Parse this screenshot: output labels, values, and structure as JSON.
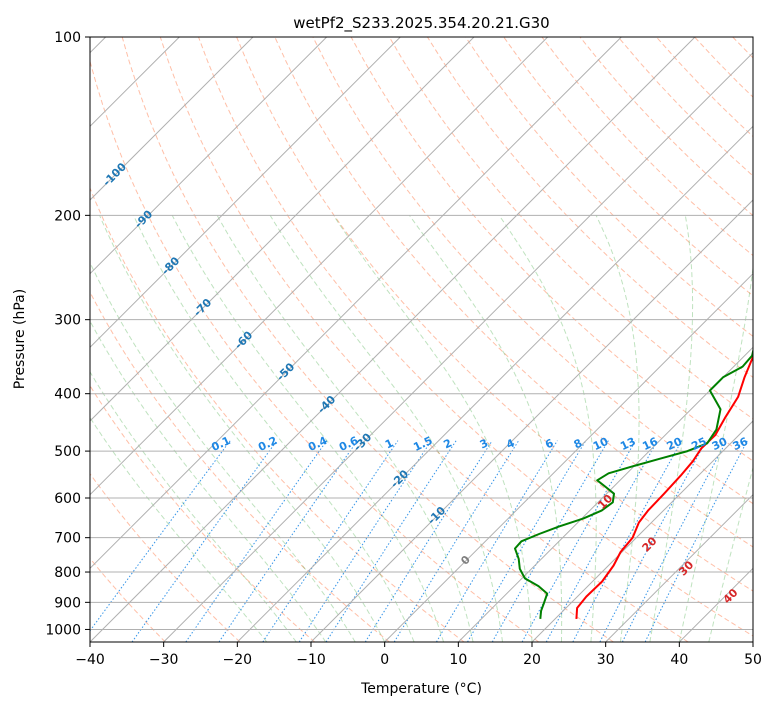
{
  "chart_data": {
    "type": "line",
    "title": "wetPf2_S233.2025.354.20.21.G30",
    "xlabel": "Temperature (°C)",
    "ylabel": "Pressure (hPa)",
    "xlim": [
      -40,
      50
    ],
    "ylim": [
      1050,
      100
    ],
    "x_ticks": [
      -40,
      -30,
      -20,
      -10,
      0,
      10,
      20,
      30,
      40,
      50
    ],
    "y_ticks": [
      100,
      200,
      300,
      400,
      500,
      600,
      700,
      800,
      900,
      1000
    ],
    "grid": true,
    "series": [
      {
        "name": "Temperature",
        "color": "#ff0000",
        "points": [
          [
            22.9,
            960
          ],
          [
            21.5,
            920
          ],
          [
            21.2,
            880
          ],
          [
            21.3,
            830
          ],
          [
            20.7,
            780
          ],
          [
            19.8,
            740
          ],
          [
            19.5,
            700
          ],
          [
            18.3,
            660
          ],
          [
            17.9,
            630
          ],
          [
            17.8,
            590
          ],
          [
            17.6,
            550
          ],
          [
            17.3,
            520
          ],
          [
            16.7,
            495
          ],
          [
            16.8,
            470
          ],
          [
            15.8,
            440
          ],
          [
            14.7,
            405
          ],
          [
            12.9,
            375
          ],
          [
            11.2,
            345
          ],
          [
            9.6,
            315
          ],
          [
            7.7,
            285
          ],
          [
            5.7,
            260
          ],
          [
            4.0,
            240
          ],
          [
            2.0,
            220
          ],
          [
            0.1,
            200
          ],
          [
            -2.3,
            182
          ],
          [
            -3.5,
            172
          ],
          [
            -3.5,
            168
          ],
          [
            -2.3,
            162
          ],
          [
            1.0,
            157
          ],
          [
            4.5,
            152
          ],
          [
            7.5,
            146
          ],
          [
            8.5,
            140
          ],
          [
            8.8,
            133
          ],
          [
            8.1,
            126
          ],
          [
            7.8,
            120
          ],
          [
            7.8,
            114
          ],
          [
            8.2,
            108
          ],
          [
            9.2,
            103
          ],
          [
            10.0,
            100
          ]
        ]
      },
      {
        "name": "Dewpoint",
        "color": "#008000",
        "points": [
          [
            18.0,
            960
          ],
          [
            17.0,
            930
          ],
          [
            16.4,
            905
          ],
          [
            15.5,
            870
          ],
          [
            13.3,
            845
          ],
          [
            10.4,
            820
          ],
          [
            8.4,
            790
          ],
          [
            6.9,
            760
          ],
          [
            5.0,
            730
          ],
          [
            4.9,
            710
          ],
          [
            6.3,
            690
          ],
          [
            8.0,
            670
          ],
          [
            10.2,
            650
          ],
          [
            11.6,
            630
          ],
          [
            12.0,
            610
          ],
          [
            11.0,
            590
          ],
          [
            9.0,
            575
          ],
          [
            6.9,
            560
          ],
          [
            7.5,
            545
          ],
          [
            9.9,
            530
          ],
          [
            12.5,
            515
          ],
          [
            15.2,
            500
          ],
          [
            16.8,
            485
          ],
          [
            16.2,
            460
          ],
          [
            14.0,
            425
          ],
          [
            10.0,
            395
          ],
          [
            10.0,
            375
          ],
          [
            11.2,
            360
          ],
          [
            11.0,
            345
          ],
          [
            9.4,
            325
          ],
          [
            6.9,
            300
          ],
          [
            5.2,
            280
          ],
          [
            2.9,
            255
          ],
          [
            1.8,
            240
          ],
          [
            0.2,
            220
          ],
          [
            -1.1,
            205
          ],
          [
            -2.3,
            190
          ],
          [
            -3.7,
            178
          ],
          [
            -4.5,
            170
          ],
          [
            -4.4,
            162
          ],
          [
            -5.0,
            155
          ],
          [
            -7.9,
            148
          ],
          [
            -12.0,
            144
          ],
          [
            -13.0,
            140
          ],
          [
            -11.0,
            135
          ],
          [
            -6.0,
            132
          ],
          [
            -4.1,
            128
          ],
          [
            -3.8,
            122
          ],
          [
            -3.8,
            114
          ],
          [
            -3.4,
            109
          ],
          [
            -3.6,
            103
          ],
          [
            -3.3,
            100
          ]
        ]
      }
    ],
    "isotherm_labels": [
      "-100",
      "-90",
      "-80",
      "-70",
      "-60",
      "-50",
      "-40",
      "-30",
      "-20",
      "-10",
      "0"
    ],
    "mixing_ratio_labels": [
      "0.1",
      "0.2",
      "0.4",
      "0.6",
      "1",
      "1.5",
      "2",
      "3",
      "4",
      "6",
      "8",
      "10",
      "13",
      "16",
      "20",
      "25",
      "30",
      "36"
    ],
    "dry_adiabat_labels": [
      "10",
      "20",
      "30",
      "40"
    ],
    "colors": {
      "isotherm_label": "#1f77b4",
      "mixing_ratio": "#1e88e5",
      "dry_adiabat": "#ff7f50",
      "moist_adiabat": "#2ca02c",
      "dry_adiabat_label": "#d62728",
      "zero_label": "#7f7f7f"
    }
  }
}
